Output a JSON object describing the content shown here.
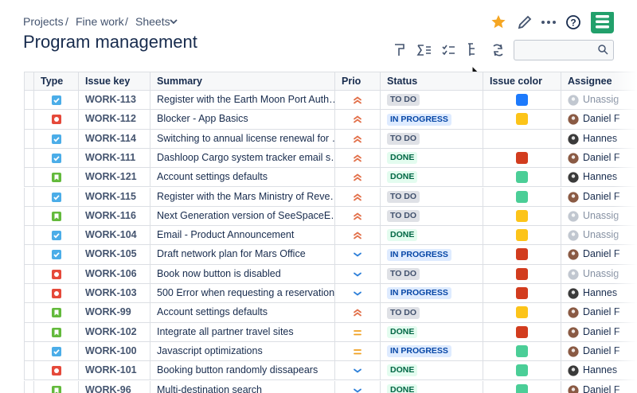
{
  "breadcrumbs": [
    "Projects",
    "Fine work",
    "Sheets"
  ],
  "title": "Program management",
  "table": {
    "columns": [
      "Type",
      "Issue key",
      "Summary",
      "Prio",
      "Status",
      "Issue color",
      "Assignee"
    ],
    "rows": [
      {
        "key": "WORK-113",
        "summary": "Register with the Earth Moon Port Auth…",
        "status": "TO DO",
        "assignee": "Unassig",
        "type_icon": "check",
        "type_color": "#4bade8",
        "prio_icon": "double-up",
        "prio_color": "#e2704a",
        "status_bg": "#dfe1e6",
        "status_fg": "#42526e",
        "issue_color": "#1d7afc",
        "avatar_color": "#c1c7d0"
      },
      {
        "key": "WORK-112",
        "summary": "Blocker - App Basics",
        "status": "IN PROGRESS",
        "assignee": "Daniel F",
        "type_icon": "dot",
        "type_color": "#e5493a",
        "prio_icon": "double-up",
        "prio_color": "#e2704a",
        "status_bg": "#deebff",
        "status_fg": "#0747a6",
        "issue_color": "#fcc419",
        "avatar_color": "#8a5a44"
      },
      {
        "key": "WORK-114",
        "summary": "Switching to annual license renewal for …",
        "status": "TO DO",
        "assignee": "Hannes",
        "type_icon": "check",
        "type_color": "#4bade8",
        "prio_icon": "double-up",
        "prio_color": "#e2704a",
        "status_bg": "#dfe1e6",
        "status_fg": "#42526e",
        "issue_color": null,
        "avatar_color": "#3a3a3a"
      },
      {
        "key": "WORK-111",
        "summary": "Dashloop Cargo system tracker email s…",
        "status": "DONE",
        "assignee": "Daniel F",
        "type_icon": "check",
        "type_color": "#4bade8",
        "prio_icon": "double-up",
        "prio_color": "#e2704a",
        "status_bg": "#e3fcef",
        "status_fg": "#006644",
        "issue_color": "#d23c1e",
        "avatar_color": "#8a5a44"
      },
      {
        "key": "WORK-121",
        "summary": "Account settings defaults",
        "status": "DONE",
        "assignee": "Hannes",
        "type_icon": "bookmark",
        "type_color": "#63ba3c",
        "prio_icon": "double-up",
        "prio_color": "#e2704a",
        "status_bg": "#e3fcef",
        "status_fg": "#006644",
        "issue_color": "#4bce97",
        "avatar_color": "#3a3a3a"
      },
      {
        "key": "WORK-115",
        "summary": "Register with the Mars Ministry of Reve…",
        "status": "TO DO",
        "assignee": "Daniel F",
        "type_icon": "check",
        "type_color": "#4bade8",
        "prio_icon": "double-up",
        "prio_color": "#e2704a",
        "status_bg": "#dfe1e6",
        "status_fg": "#42526e",
        "issue_color": "#4bce97",
        "avatar_color": "#8a5a44"
      },
      {
        "key": "WORK-116",
        "summary": "Next Generation version of SeeSpaceE…",
        "status": "TO DO",
        "assignee": "Unassig",
        "type_icon": "bookmark",
        "type_color": "#63ba3c",
        "prio_icon": "double-up",
        "prio_color": "#e2704a",
        "status_bg": "#dfe1e6",
        "status_fg": "#42526e",
        "issue_color": "#fcc419",
        "avatar_color": "#c1c7d0"
      },
      {
        "key": "WORK-104",
        "summary": "Email - Product Announcement",
        "status": "DONE",
        "assignee": "Unassig",
        "type_icon": "check",
        "type_color": "#4bade8",
        "prio_icon": "double-up",
        "prio_color": "#e2704a",
        "status_bg": "#e3fcef",
        "status_fg": "#006644",
        "issue_color": "#fcc419",
        "avatar_color": "#c1c7d0"
      },
      {
        "key": "WORK-105",
        "summary": "Draft network plan for Mars Office",
        "status": "IN PROGRESS",
        "assignee": "Daniel F",
        "type_icon": "check",
        "type_color": "#4bade8",
        "prio_icon": "down",
        "prio_color": "#2d7fd9",
        "status_bg": "#deebff",
        "status_fg": "#0747a6",
        "issue_color": "#d23c1e",
        "avatar_color": "#8a5a44"
      },
      {
        "key": "WORK-106",
        "summary": "Book now button is disabled",
        "status": "TO DO",
        "assignee": "Unassig",
        "type_icon": "dot",
        "type_color": "#e5493a",
        "prio_icon": "down",
        "prio_color": "#2d7fd9",
        "status_bg": "#dfe1e6",
        "status_fg": "#42526e",
        "issue_color": "#d23c1e",
        "avatar_color": "#c1c7d0"
      },
      {
        "key": "WORK-103",
        "summary": "500 Error when requesting a reservation",
        "status": "IN PROGRESS",
        "assignee": "Hannes",
        "type_icon": "dot",
        "type_color": "#e5493a",
        "prio_icon": "down",
        "prio_color": "#2d7fd9",
        "status_bg": "#deebff",
        "status_fg": "#0747a6",
        "issue_color": "#d23c1e",
        "avatar_color": "#3a3a3a"
      },
      {
        "key": "WORK-99",
        "summary": "Account settings defaults",
        "status": "TO DO",
        "assignee": "Daniel F",
        "type_icon": "bookmark",
        "type_color": "#63ba3c",
        "prio_icon": "double-up",
        "prio_color": "#e2704a",
        "status_bg": "#dfe1e6",
        "status_fg": "#42526e",
        "issue_color": "#fcc419",
        "avatar_color": "#8a5a44"
      },
      {
        "key": "WORK-102",
        "summary": "Integrate all partner travel sites",
        "status": "DONE",
        "assignee": "Daniel F",
        "type_icon": "bookmark",
        "type_color": "#63ba3c",
        "prio_icon": "equal",
        "prio_color": "#f0a020",
        "status_bg": "#e3fcef",
        "status_fg": "#006644",
        "issue_color": "#d23c1e",
        "avatar_color": "#8a5a44"
      },
      {
        "key": "WORK-100",
        "summary": "Javascript optimizations",
        "status": "IN PROGRESS",
        "assignee": "Daniel F",
        "type_icon": "check",
        "type_color": "#4bade8",
        "prio_icon": "equal",
        "prio_color": "#f0a020",
        "status_bg": "#deebff",
        "status_fg": "#0747a6",
        "issue_color": "#4bce97",
        "avatar_color": "#8a5a44"
      },
      {
        "key": "WORK-101",
        "summary": "Booking button randomly dissapears",
        "status": "DONE",
        "assignee": "Hannes",
        "type_icon": "dot",
        "type_color": "#e5493a",
        "prio_icon": "down",
        "prio_color": "#2d7fd9",
        "status_bg": "#e3fcef",
        "status_fg": "#006644",
        "issue_color": "#4bce97",
        "avatar_color": "#3a3a3a"
      },
      {
        "key": "WORK-96",
        "summary": "Multi-destination search",
        "status": "DONE",
        "assignee": "Daniel F",
        "type_icon": "bookmark",
        "type_color": "#63ba3c",
        "prio_icon": "down",
        "prio_color": "#2d7fd9",
        "status_bg": "#e3fcef",
        "status_fg": "#006644",
        "issue_color": "#4bce97",
        "avatar_color": "#8a5a44"
      }
    ]
  }
}
